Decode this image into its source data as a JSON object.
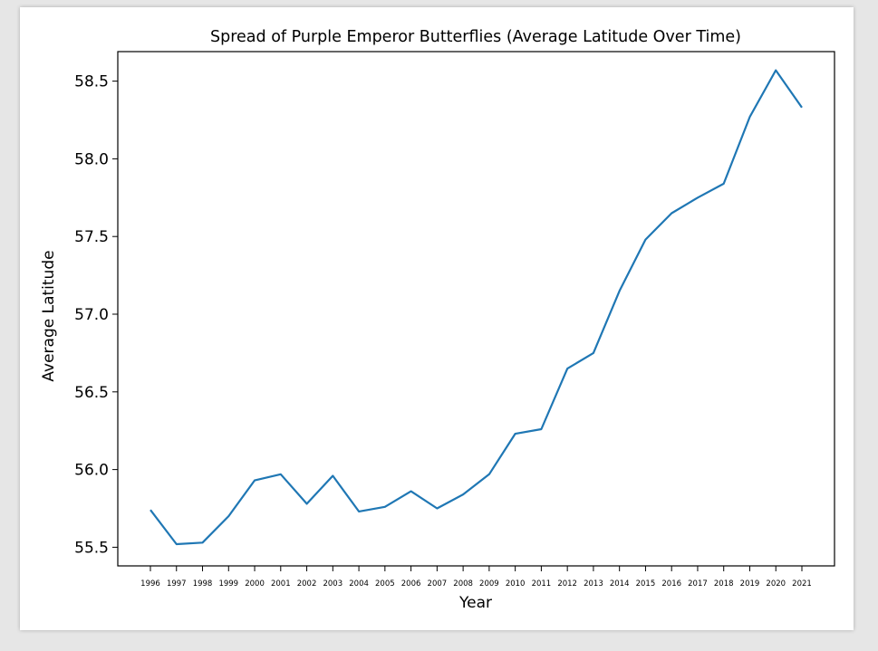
{
  "chart_data": {
    "type": "line",
    "title": "Spread of Purple Emperor Butterflies (Average Latitude Over Time)",
    "xlabel": "Year",
    "ylabel": "Average Latitude",
    "categories": [
      "1996",
      "1997",
      "1998",
      "1999",
      "2000",
      "2001",
      "2002",
      "2003",
      "2004",
      "2005",
      "2006",
      "2007",
      "2008",
      "2009",
      "2010",
      "2011",
      "2012",
      "2013",
      "2014",
      "2015",
      "2016",
      "2017",
      "2018",
      "2019",
      "2020",
      "2021"
    ],
    "series": [
      {
        "values": [
          55.74,
          55.52,
          55.53,
          55.7,
          55.93,
          55.97,
          55.78,
          55.96,
          55.73,
          55.76,
          55.86,
          55.75,
          55.84,
          55.97,
          56.23,
          56.26,
          56.65,
          56.75,
          57.15,
          57.48,
          57.65,
          57.75,
          57.84,
          58.27,
          58.57,
          58.33
        ],
        "color": "#1f77b4"
      }
    ],
    "yticks": [
      "55.5",
      "56.0",
      "56.5",
      "57.0",
      "57.5",
      "58.0",
      "58.5"
    ],
    "ylim": [
      55.38,
      58.69
    ],
    "grid": false,
    "legend": "none"
  }
}
